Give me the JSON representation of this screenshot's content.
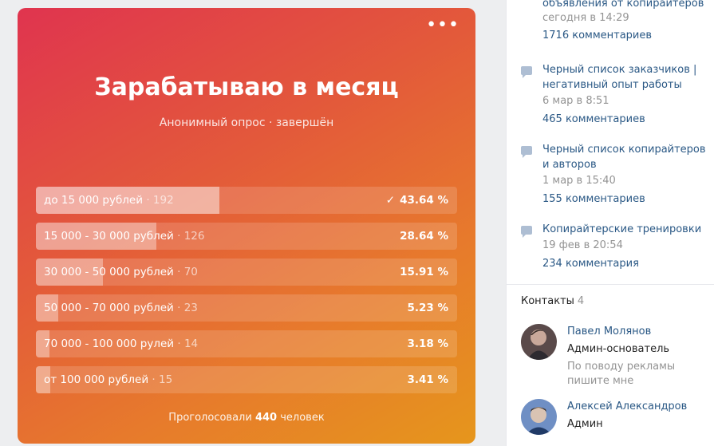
{
  "poll": {
    "title": "Зарабатываю в месяц",
    "subtitle": "Анонимный опрос · завершён",
    "more_glyph": "•••",
    "options": [
      {
        "label": "до 15 000 рублей",
        "count": "· 192",
        "percent": "43.64 %",
        "fraction": 0.4364,
        "voted": true,
        "check": "✓"
      },
      {
        "label": "15 000 - 30 000 рублей",
        "count": "· 126",
        "percent": "28.64 %",
        "fraction": 0.2864,
        "voted": false
      },
      {
        "label": "30 000 - 50 000 рублей",
        "count": "· 70",
        "percent": "15.91 %",
        "fraction": 0.1591,
        "voted": false
      },
      {
        "label": "50 000 - 70 000 рублей",
        "count": "· 23",
        "percent": "5.23 %",
        "fraction": 0.0523,
        "voted": false
      },
      {
        "label": "70 000 - 100 000 рулей",
        "count": "· 14",
        "percent": "3.18 %",
        "fraction": 0.0318,
        "voted": false
      },
      {
        "label": "от 100 000 рублей",
        "count": "· 15",
        "percent": "3.41 %",
        "fraction": 0.0341,
        "voted": false
      }
    ],
    "total_prefix": "Проголосовали",
    "total_count": "440",
    "total_suffix": "человек"
  },
  "sidebar": {
    "topics": [
      {
        "title": "объявления от копирайтеров",
        "date": "сегодня в 14:29",
        "comments": "1716 комментариев",
        "icon": "comment-icon"
      },
      {
        "title": "Черный список заказчиков | негативный опыт работы",
        "date": "6 мар в 8:51",
        "comments": "465 комментариев",
        "icon": "comment-icon"
      },
      {
        "title": "Черный список копирайтеров и авторов",
        "date": "1 мар в 15:40",
        "comments": "155 комментариев",
        "icon": "comment-icon"
      },
      {
        "title": "Копирайтерские тренировки",
        "date": "19 фев в 20:54",
        "comments": "234 комментария",
        "icon": "comment-icon"
      }
    ],
    "contacts_title": "Контакты",
    "contacts_count": "4",
    "contacts": [
      {
        "name": "Павел Молянов",
        "role": "Админ-основатель",
        "note": "По поводу рекламы пишите мне"
      },
      {
        "name": "Алексей Александров",
        "role": "Админ",
        "note": ""
      }
    ]
  }
}
